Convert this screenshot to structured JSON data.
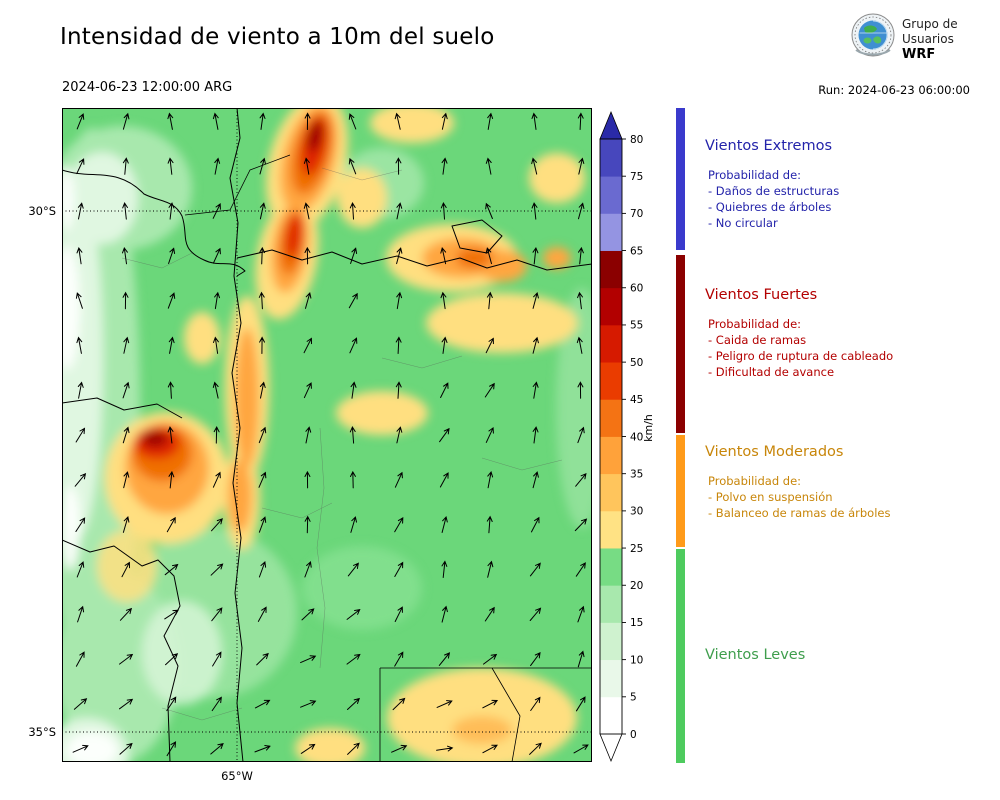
{
  "header": {
    "title": "Intensidad de viento a 10m del suelo",
    "datetime": "2024-06-23 12:00:00 ARG",
    "run": "Run: 2024-06-23 06:00:00",
    "logo": {
      "line1": "Grupo de",
      "line2": "Usuarios",
      "line3": "WRF"
    }
  },
  "map_axes": {
    "lat_ticks": [
      "30°S",
      "35°S"
    ],
    "lon_ticks": [
      "65°W"
    ]
  },
  "colorbar": {
    "unit": "km/h",
    "ticks": [
      "0",
      "5",
      "10",
      "15",
      "20",
      "25",
      "30",
      "35",
      "40",
      "45",
      "50",
      "55",
      "60",
      "65",
      "70",
      "75",
      "80"
    ],
    "segment_colors_bottom_to_top": [
      "#ffffff",
      "#e9f8e9",
      "#cff2cf",
      "#a8e8ad",
      "#77dc84",
      "#ffe284",
      "#ffc55c",
      "#ffa23a",
      "#f47314",
      "#ea3c00",
      "#d61a00",
      "#b20000",
      "#8b0000",
      "#9494e2",
      "#6a6ad0",
      "#4747bd"
    ],
    "extend_top_color": "#2a2aa8",
    "extend_bottom_color": "#ffffff"
  },
  "legend": {
    "sections": [
      {
        "title": "Vientos Extremos",
        "color": "#2323aa",
        "bar_color": "#3a3acc",
        "lines": [
          "Probabilidad de:",
          "- Daños de estructuras",
          "- Quiebres de árboles",
          "- No circular"
        ]
      },
      {
        "title": "Vientos Fuertes",
        "color": "#b30000",
        "bar_color": "#8b0000",
        "lines": [
          "Probabilidad de:",
          "- Caida de ramas",
          "- Peligro de ruptura de cableado",
          "- Dificultad de avance"
        ]
      },
      {
        "title": "Vientos Moderados",
        "color": "#c8860a",
        "bar_color": "#ff9b1a",
        "lines": [
          "Probabilidad de:",
          "- Polvo en suspensión",
          "- Balanceo de ramas de árboles"
        ]
      },
      {
        "title": "Vientos Leves",
        "color": "#3f9e4d",
        "bar_color": "#4ecb5e",
        "lines": []
      }
    ]
  }
}
